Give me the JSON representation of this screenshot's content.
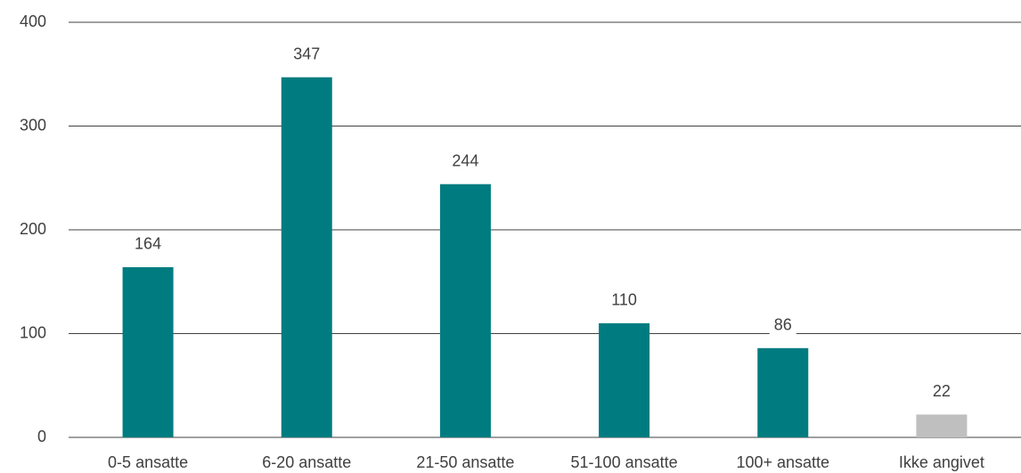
{
  "chart_data": {
    "type": "bar",
    "categories": [
      "0-5 ansatte",
      "6-20 ansatte",
      "21-50 ansatte",
      "51-100 ansatte",
      "100+ ansatte",
      "Ikke angivet"
    ],
    "values": [
      164,
      347,
      244,
      110,
      86,
      22
    ],
    "colors": [
      "#007c80",
      "#007c80",
      "#007c80",
      "#007c80",
      "#007c80",
      "#bfbfbf"
    ],
    "ylim": [
      0,
      400
    ],
    "yticks": [
      0,
      100,
      200,
      300,
      400
    ],
    "grid": true
  }
}
